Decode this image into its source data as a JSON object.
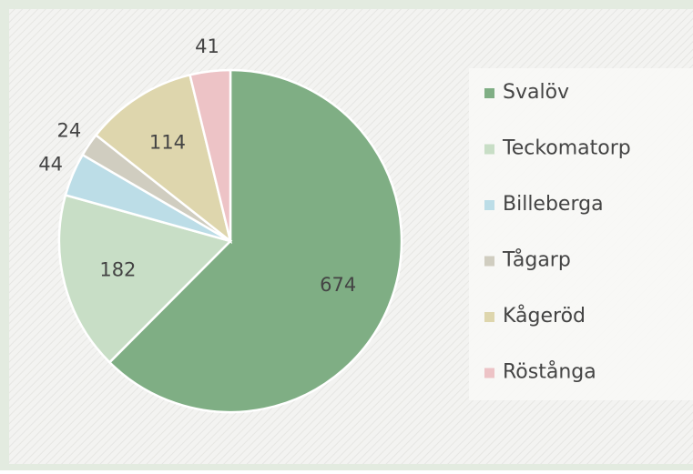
{
  "chart_data": {
    "type": "pie",
    "categories": [
      "Svalöv",
      "Teckomatorp",
      "Billeberga",
      "Tågarp",
      "Kågeröd",
      "Röstånga"
    ],
    "values": [
      674,
      182,
      44,
      24,
      114,
      41
    ],
    "colors": [
      "#7fae84",
      "#c8dec6",
      "#bcdde7",
      "#d0cdc0",
      "#ded6ad",
      "#edc3c6"
    ],
    "legend": "right"
  }
}
